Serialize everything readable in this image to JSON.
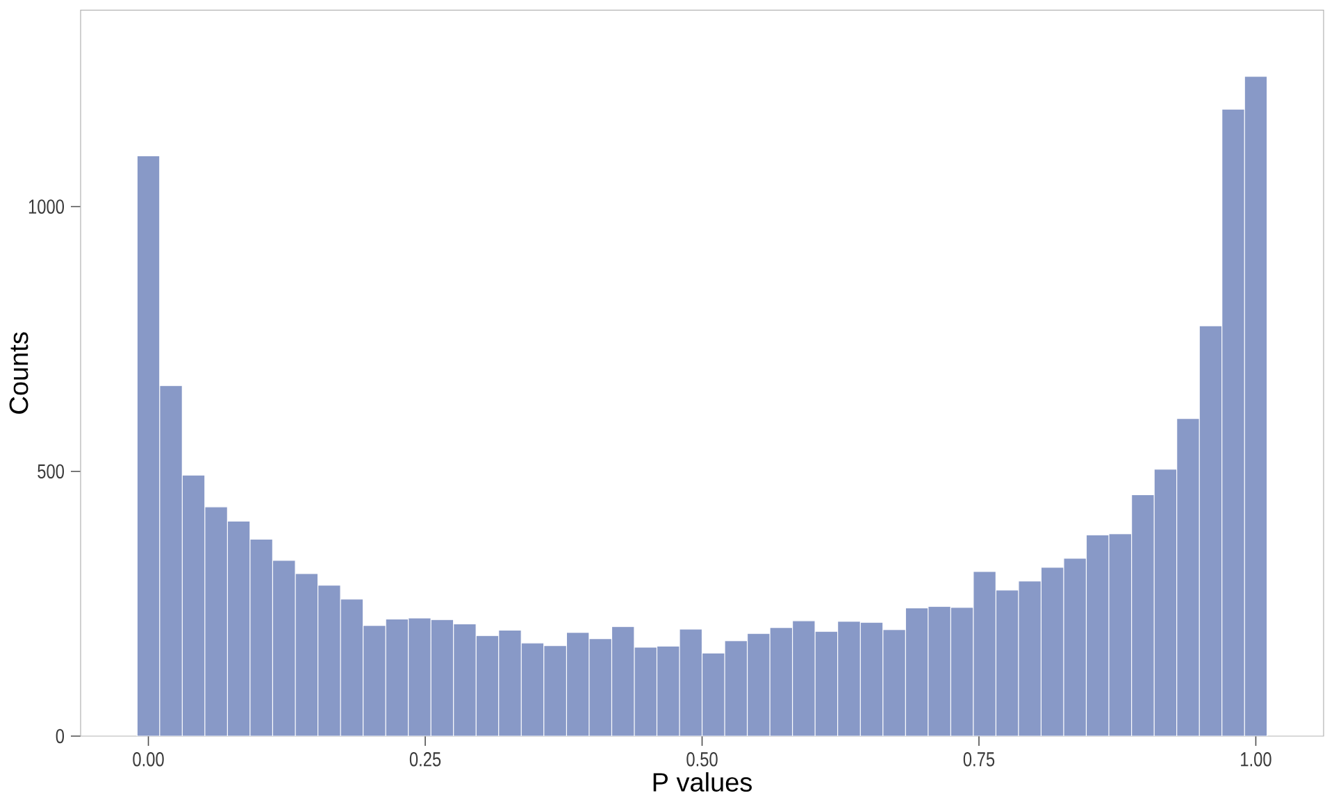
{
  "chart_data": {
    "type": "histogram",
    "xlabel": "P values",
    "ylabel": "Counts",
    "bins": [
      -0.0102,
      0.0102,
      0.0306,
      0.051,
      0.0714,
      0.0918,
      0.1122,
      0.1327,
      0.1531,
      0.1735,
      0.1939,
      0.2143,
      0.2347,
      0.2551,
      0.2755,
      0.2959,
      0.3163,
      0.3367,
      0.3571,
      0.3776,
      0.398,
      0.4184,
      0.4388,
      0.4592,
      0.4796,
      0.5,
      0.5204,
      0.5408,
      0.5612,
      0.5816,
      0.602,
      0.6224,
      0.6429,
      0.6633,
      0.6837,
      0.7041,
      0.7245,
      0.7449,
      0.7653,
      0.7857,
      0.8061,
      0.8265,
      0.8469,
      0.8673,
      0.8878,
      0.9082,
      0.9286,
      0.949,
      0.9694,
      0.9898,
      1.0102
    ],
    "values": [
      1096,
      662,
      493,
      433,
      406,
      372,
      332,
      307,
      285,
      259,
      209,
      221,
      223,
      220,
      212,
      190,
      200,
      176,
      171,
      196,
      184,
      207,
      168,
      170,
      202,
      157,
      180,
      194,
      205,
      218,
      198,
      217,
      215,
      201,
      242,
      245,
      243,
      311,
      276,
      293,
      319,
      336,
      380,
      382,
      456,
      504,
      600,
      775,
      1184,
      1246
    ],
    "color": "#8899c7",
    "xlim": [
      -0.0612,
      1.0612
    ],
    "ylim": [
      0,
      1371
    ],
    "xticks": [
      {
        "value": 0,
        "label": "0.00"
      },
      {
        "value": 0.25,
        "label": "0.25"
      },
      {
        "value": 0.5,
        "label": "0.50"
      },
      {
        "value": 0.75,
        "label": "0.75"
      },
      {
        "value": 1,
        "label": "1.00"
      }
    ],
    "yticks": [
      0,
      500,
      1000
    ]
  }
}
